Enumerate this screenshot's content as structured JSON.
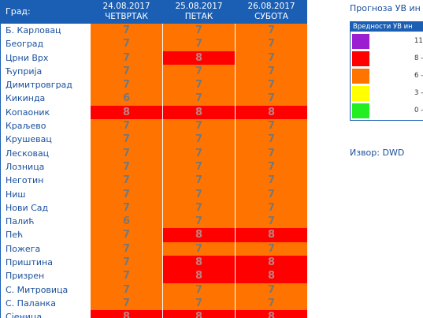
{
  "header": {
    "city_label": "Град:",
    "days": [
      {
        "date": "24.08.2017",
        "name": "ЧЕТВРТАК"
      },
      {
        "date": "25.08.2017",
        "name": "ПЕТАК"
      },
      {
        "date": "26.08.2017",
        "name": "СУБОТА"
      }
    ]
  },
  "rows": [
    {
      "city": "Б. Карловац",
      "values": [
        "7",
        "7",
        "7"
      ]
    },
    {
      "city": "Београд",
      "values": [
        "7",
        "7",
        "7"
      ]
    },
    {
      "city": "Црни Врх",
      "values": [
        "7",
        "8",
        "7"
      ]
    },
    {
      "city": "Ћуприја",
      "values": [
        "7",
        "7",
        "7"
      ]
    },
    {
      "city": "Димитровград",
      "values": [
        "7",
        "7",
        "7"
      ]
    },
    {
      "city": "Кикинда",
      "values": [
        "6",
        "7",
        "7"
      ]
    },
    {
      "city": "Копаоник",
      "values": [
        "8",
        "8",
        "8"
      ]
    },
    {
      "city": "Краљево",
      "values": [
        "7",
        "7",
        "7"
      ]
    },
    {
      "city": "Крушевац",
      "values": [
        "7",
        "7",
        "7"
      ]
    },
    {
      "city": "Лесковац",
      "values": [
        "7",
        "7",
        "7"
      ]
    },
    {
      "city": "Лозница",
      "values": [
        "7",
        "7",
        "7"
      ]
    },
    {
      "city": "Неготин",
      "values": [
        "7",
        "7",
        "7"
      ]
    },
    {
      "city": "Ниш",
      "values": [
        "7",
        "7",
        "7"
      ]
    },
    {
      "city": "Нови Сад",
      "values": [
        "7",
        "7",
        "7"
      ]
    },
    {
      "city": "Палић",
      "values": [
        "6",
        "7",
        "7"
      ]
    },
    {
      "city": "Пећ",
      "values": [
        "7",
        "8",
        "8"
      ]
    },
    {
      "city": "Пожега",
      "values": [
        "7",
        "7",
        "7"
      ]
    },
    {
      "city": "Приштина",
      "values": [
        "7",
        "8",
        "8"
      ]
    },
    {
      "city": "Призрен",
      "values": [
        "7",
        "8",
        "8"
      ]
    },
    {
      "city": "С. Митровица",
      "values": [
        "7",
        "7",
        "7"
      ]
    },
    {
      "city": "С. Паланка",
      "values": [
        "7",
        "7",
        "7"
      ]
    },
    {
      "city": "Сјеница",
      "values": [
        "8",
        "8",
        "8"
      ]
    }
  ],
  "colors": {
    "orange": "#ff7400",
    "red": "#ff0000",
    "header_blue": "#1a5fb4"
  },
  "legend": {
    "title": "Прогноза УВ ин",
    "header": "Вредности УВ ин",
    "items": [
      {
        "color": "#9b1fd1",
        "label": "11"
      },
      {
        "color": "#ff0000",
        "label": "8 -"
      },
      {
        "color": "#ff7400",
        "label": "6 -"
      },
      {
        "color": "#ffff00",
        "label": "3 -"
      },
      {
        "color": "#22ee22",
        "label": "0 -"
      }
    ]
  },
  "source": "Извор: DWD"
}
